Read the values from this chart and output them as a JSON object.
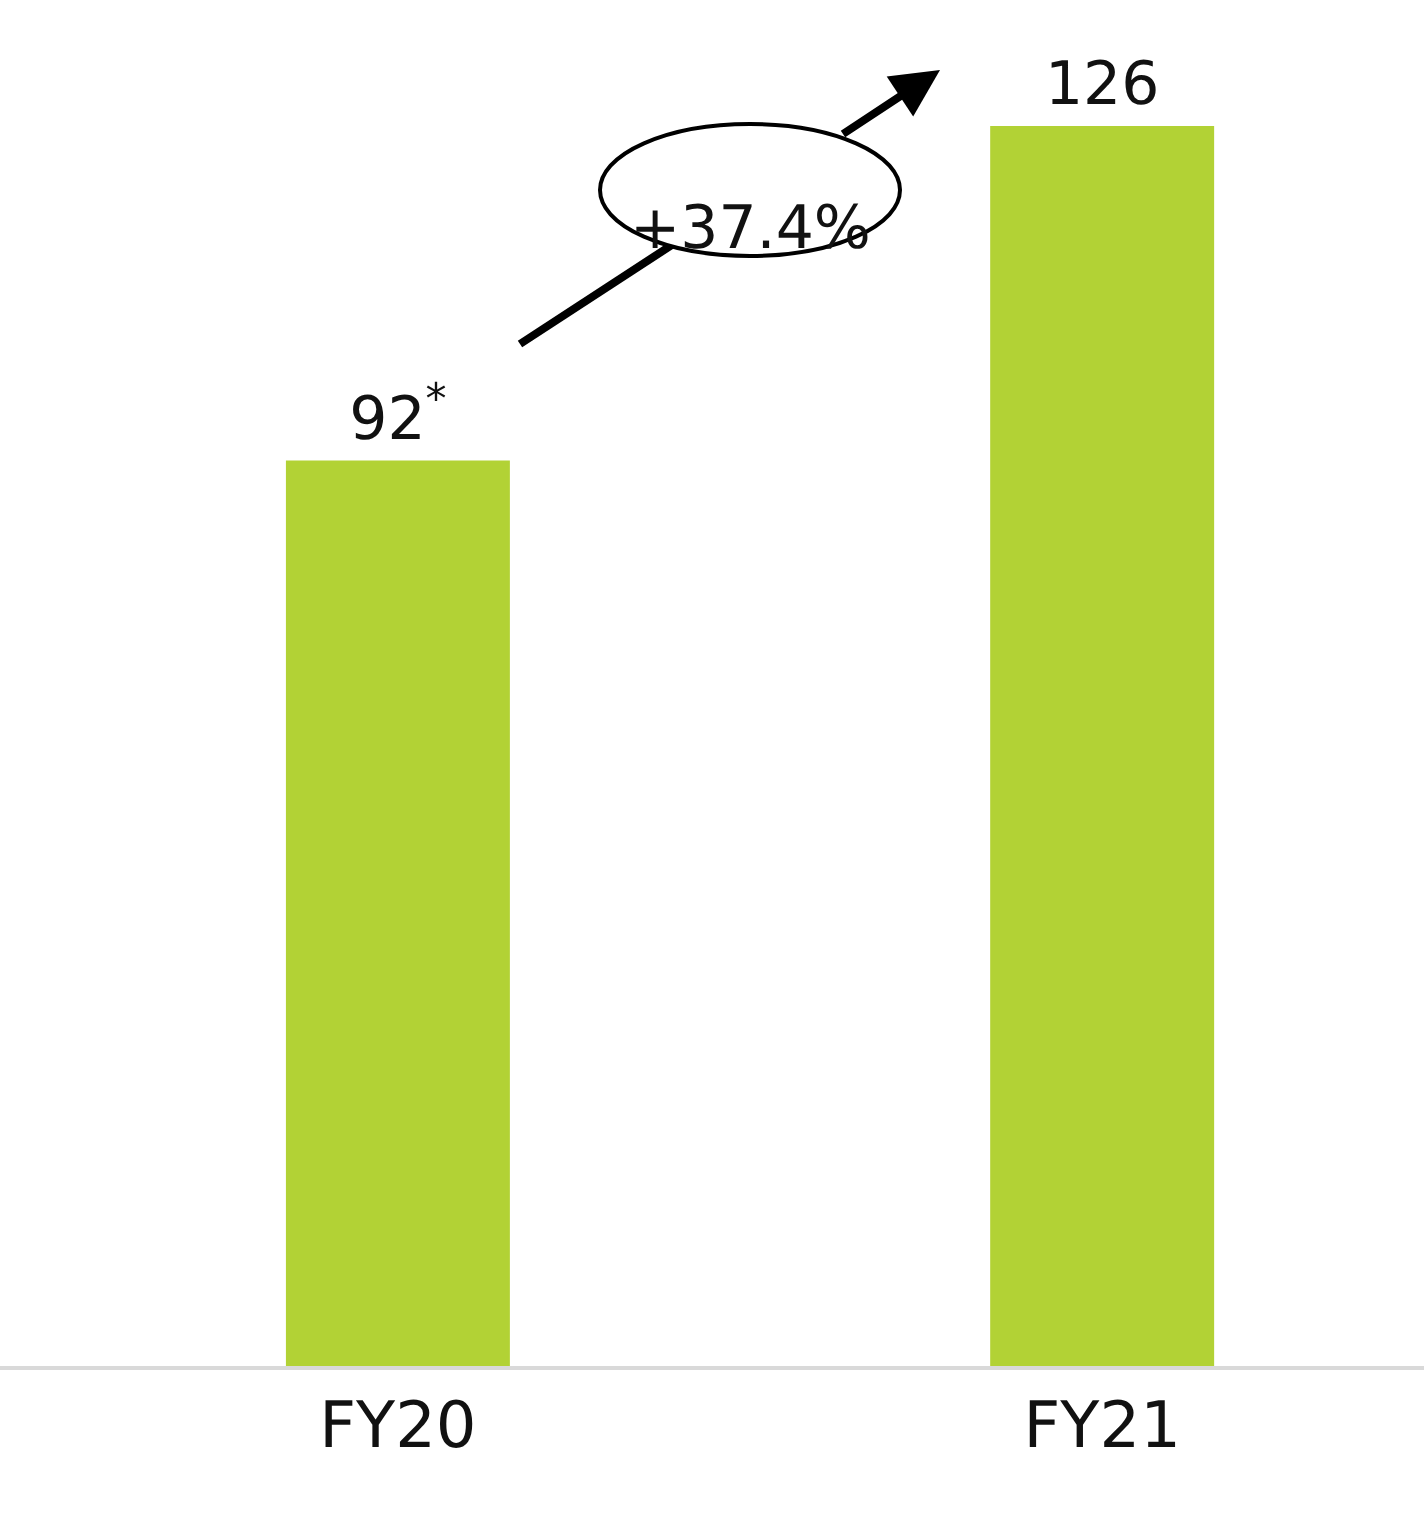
{
  "chart_data": {
    "type": "bar",
    "categories": [
      "FY20",
      "FY21"
    ],
    "values": [
      92,
      126
    ],
    "color": "#b2d235",
    "value_labels": [
      "92$^{*}$",
      "126"
    ],
    "annotations": [
      "+37.4%"
    ]
  }
}
